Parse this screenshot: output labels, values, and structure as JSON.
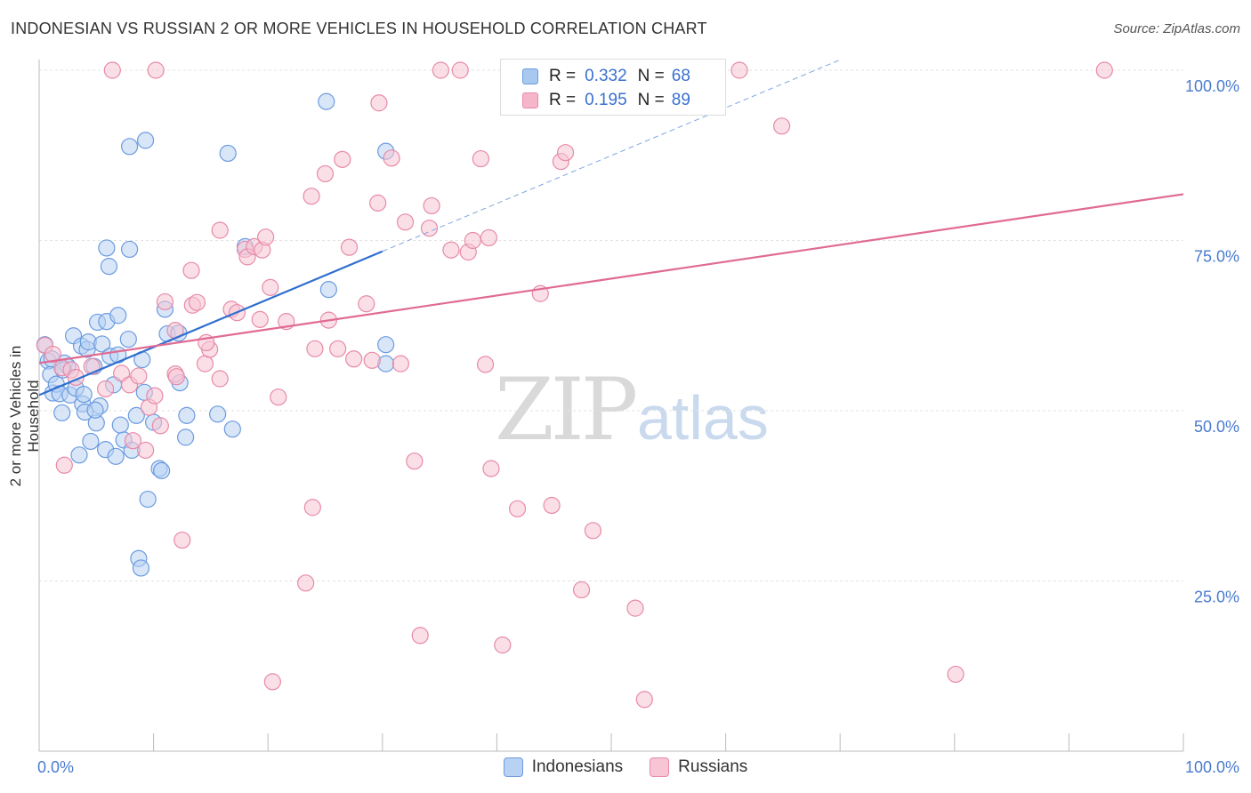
{
  "title": "INDONESIAN VS RUSSIAN 2 OR MORE VEHICLES IN HOUSEHOLD CORRELATION CHART",
  "source": "Source: ZipAtlas.com",
  "watermark": {
    "zip": "ZIP",
    "atlas": "atlas"
  },
  "legend_top": [
    {
      "r_label": "R =",
      "r_value": "0.332",
      "n_label": "N =",
      "n_value": "68",
      "color": "#a9c8f0"
    },
    {
      "r_label": "R =",
      "r_value": "0.195",
      "n_label": "N =",
      "n_value": "89",
      "color": "#f6b6c9"
    }
  ],
  "chart_data": {
    "type": "scatter",
    "title": "INDONESIAN VS RUSSIAN 2 OR MORE VEHICLES IN HOUSEHOLD CORRELATION CHART",
    "xlabel": "",
    "ylabel": "2 or more Vehicles in Household",
    "xlim": [
      0,
      100
    ],
    "ylim": [
      0,
      100
    ],
    "x_tick_labels": [
      "0.0%",
      "100.0%"
    ],
    "y_tick_labels": [
      "25.0%",
      "50.0%",
      "75.0%",
      "100.0%"
    ],
    "y_ticks": [
      25,
      50,
      75,
      100
    ],
    "grid": true,
    "legend_position": "bottom",
    "series": [
      {
        "name": "Indonesians",
        "color": "#6b9be0",
        "fill": "#b8d2f3",
        "trend": {
          "x": [
            0,
            30
          ],
          "y": [
            52.3,
            73.4
          ],
          "dash_to": [
            70,
            100
          ]
        },
        "points": [
          [
            0.5,
            59.7
          ],
          [
            0.8,
            57.3
          ],
          [
            1.0,
            55.3
          ],
          [
            1.2,
            52.6
          ],
          [
            1.5,
            53.9
          ],
          [
            1.8,
            52.5
          ],
          [
            2.0,
            49.7
          ],
          [
            2.2,
            57.0
          ],
          [
            2.5,
            56.5
          ],
          [
            2.7,
            52.3
          ],
          [
            3.0,
            61.0
          ],
          [
            3.2,
            53.3
          ],
          [
            3.5,
            43.5
          ],
          [
            3.7,
            59.5
          ],
          [
            3.8,
            51.0
          ],
          [
            4.0,
            49.8
          ],
          [
            4.2,
            59.0
          ],
          [
            4.3,
            60.1
          ],
          [
            4.5,
            45.5
          ],
          [
            4.8,
            56.5
          ],
          [
            5.0,
            48.2
          ],
          [
            5.1,
            63.0
          ],
          [
            5.3,
            50.7
          ],
          [
            5.5,
            59.8
          ],
          [
            5.8,
            44.3
          ],
          [
            5.9,
            63.1
          ],
          [
            6.2,
            58.0
          ],
          [
            6.5,
            53.8
          ],
          [
            6.7,
            43.3
          ],
          [
            6.9,
            64.0
          ],
          [
            7.1,
            47.9
          ],
          [
            7.4,
            45.7
          ],
          [
            7.8,
            60.5
          ],
          [
            8.1,
            44.2
          ],
          [
            8.5,
            49.3
          ],
          [
            8.7,
            28.3
          ],
          [
            8.9,
            26.9
          ],
          [
            9.2,
            52.7
          ],
          [
            9.5,
            37.0
          ],
          [
            10.0,
            48.3
          ],
          [
            10.5,
            41.5
          ],
          [
            10.7,
            41.2
          ],
          [
            11.0,
            64.9
          ],
          [
            11.2,
            61.3
          ],
          [
            12.2,
            61.4
          ],
          [
            12.3,
            54.1
          ],
          [
            12.8,
            46.1
          ],
          [
            6.1,
            71.2
          ],
          [
            5.9,
            73.9
          ],
          [
            7.9,
            73.7
          ],
          [
            9.3,
            89.7
          ],
          [
            7.9,
            88.8
          ],
          [
            12.9,
            49.3
          ],
          [
            15.6,
            49.5
          ],
          [
            16.5,
            87.8
          ],
          [
            16.9,
            47.3
          ],
          [
            18.0,
            74.1
          ],
          [
            25.1,
            95.4
          ],
          [
            25.3,
            67.8
          ],
          [
            30.3,
            59.7
          ],
          [
            30.3,
            56.9
          ],
          [
            30.3,
            88.1
          ],
          [
            9.0,
            57.5
          ],
          [
            3.9,
            52.4
          ],
          [
            2.1,
            56.0
          ],
          [
            6.9,
            58.2
          ],
          [
            4.9,
            50.1
          ],
          [
            1.1,
            57.6
          ]
        ]
      },
      {
        "name": "Russians",
        "color": "#e78aa8",
        "fill": "#f8c5d4",
        "trend": {
          "x": [
            0,
            100
          ],
          "y": [
            57.0,
            81.8
          ]
        },
        "points": [
          [
            0.5,
            59.6
          ],
          [
            1.2,
            58.3
          ],
          [
            2.0,
            56.3
          ],
          [
            2.2,
            42.0
          ],
          [
            2.8,
            56.0
          ],
          [
            3.2,
            54.9
          ],
          [
            4.6,
            56.5
          ],
          [
            5.8,
            53.2
          ],
          [
            7.2,
            55.5
          ],
          [
            7.9,
            53.8
          ],
          [
            8.2,
            45.6
          ],
          [
            8.7,
            55.1
          ],
          [
            9.3,
            44.2
          ],
          [
            9.6,
            50.5
          ],
          [
            10.1,
            52.2
          ],
          [
            10.6,
            47.8
          ],
          [
            11.0,
            66.0
          ],
          [
            11.9,
            61.8
          ],
          [
            11.9,
            55.4
          ],
          [
            12.5,
            31.0
          ],
          [
            13.3,
            70.6
          ],
          [
            13.4,
            65.5
          ],
          [
            13.8,
            65.9
          ],
          [
            14.5,
            56.9
          ],
          [
            14.9,
            59.0
          ],
          [
            15.8,
            76.5
          ],
          [
            15.8,
            54.7
          ],
          [
            16.8,
            64.9
          ],
          [
            17.3,
            64.4
          ],
          [
            18.0,
            73.7
          ],
          [
            18.2,
            72.6
          ],
          [
            18.8,
            74.1
          ],
          [
            19.3,
            63.4
          ],
          [
            19.5,
            73.6
          ],
          [
            19.8,
            75.5
          ],
          [
            20.2,
            68.1
          ],
          [
            20.9,
            52.0
          ],
          [
            21.6,
            63.1
          ],
          [
            23.3,
            24.7
          ],
          [
            23.8,
            81.5
          ],
          [
            23.9,
            35.8
          ],
          [
            24.1,
            59.1
          ],
          [
            25.3,
            63.3
          ],
          [
            26.1,
            59.1
          ],
          [
            26.5,
            86.9
          ],
          [
            27.1,
            74.0
          ],
          [
            27.5,
            57.6
          ],
          [
            28.6,
            65.7
          ],
          [
            29.1,
            57.4
          ],
          [
            29.6,
            80.5
          ],
          [
            29.7,
            95.2
          ],
          [
            30.8,
            87.1
          ],
          [
            31.6,
            56.9
          ],
          [
            32.0,
            77.7
          ],
          [
            32.8,
            42.6
          ],
          [
            33.3,
            17.0
          ],
          [
            34.1,
            76.8
          ],
          [
            34.3,
            80.1
          ],
          [
            35.1,
            100.0
          ],
          [
            36.0,
            73.6
          ],
          [
            36.8,
            100.0
          ],
          [
            37.5,
            73.3
          ],
          [
            37.9,
            75.0
          ],
          [
            38.6,
            87.0
          ],
          [
            39.0,
            56.8
          ],
          [
            39.3,
            75.4
          ],
          [
            39.5,
            41.5
          ],
          [
            40.5,
            15.6
          ],
          [
            41.8,
            35.6
          ],
          [
            43.8,
            67.2
          ],
          [
            44.8,
            36.1
          ],
          [
            45.6,
            86.6
          ],
          [
            46.0,
            87.9
          ],
          [
            47.4,
            23.7
          ],
          [
            48.4,
            32.4
          ],
          [
            50.0,
            100.0
          ],
          [
            51.2,
            100.0
          ],
          [
            52.1,
            21.0
          ],
          [
            52.9,
            7.6
          ],
          [
            61.2,
            100.0
          ],
          [
            64.9,
            91.8
          ],
          [
            80.1,
            11.3
          ],
          [
            93.1,
            100.0
          ],
          [
            6.4,
            100.0
          ],
          [
            10.2,
            100.0
          ],
          [
            20.4,
            10.2
          ],
          [
            14.6,
            60.0
          ],
          [
            12.0,
            55.0
          ],
          [
            25.0,
            84.8
          ]
        ]
      }
    ]
  },
  "legend_bottom": [
    {
      "label": "Indonesians",
      "color": "#b8d2f3",
      "border": "#6b9be0"
    },
    {
      "label": "Russians",
      "color": "#f8c5d4",
      "border": "#e78aa8"
    }
  ]
}
